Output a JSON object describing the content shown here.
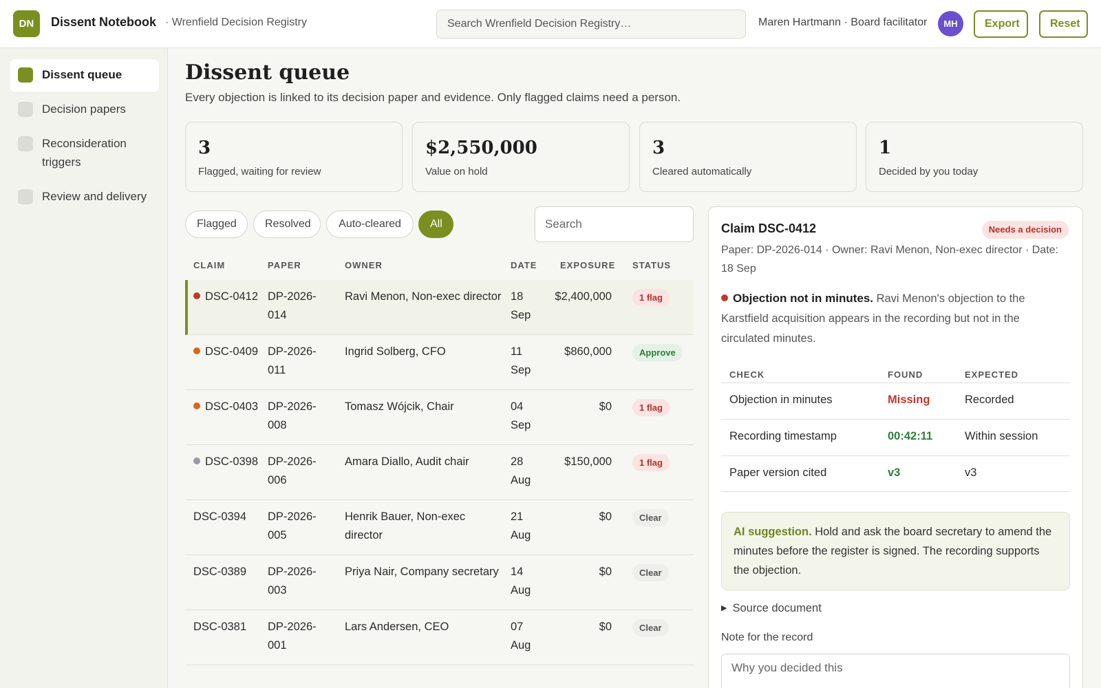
{
  "header": {
    "logo": "DN",
    "app_name": "Dissent Notebook",
    "subtitle": "· Wrenfield Decision Registry",
    "search_placeholder": "Search Wrenfield Decision Registry…",
    "user": "Maren Hartmann · Board facilitator",
    "avatar": "MH",
    "export_label": "Export",
    "reset_label": "Reset",
    "accent": "#7a8f1f"
  },
  "sidebar": {
    "items": [
      {
        "label": "Dissent queue",
        "active": true
      },
      {
        "label": "Decision papers",
        "active": false
      },
      {
        "label": "Reconsideration triggers",
        "active": false
      },
      {
        "label": "Review and delivery",
        "active": false
      }
    ]
  },
  "main": {
    "title": "Dissent queue",
    "description": "Every objection is linked to its decision paper and evidence. Only flagged claims need a person.",
    "stats": [
      {
        "value": "3",
        "label": "Flagged, waiting for review"
      },
      {
        "value": "$2,550,000",
        "label": "Value on hold"
      },
      {
        "value": "3",
        "label": "Cleared automatically"
      },
      {
        "value": "1",
        "label": "Decided by you today"
      }
    ],
    "filters": [
      {
        "label": "Flagged",
        "active": false
      },
      {
        "label": "Resolved",
        "active": false
      },
      {
        "label": "Auto-cleared",
        "active": false
      },
      {
        "label": "All",
        "active": true
      }
    ],
    "table_search_placeholder": "Search",
    "columns": [
      "CLAIM",
      "PAPER",
      "OWNER",
      "DATE",
      "EXPOSURE",
      "STATUS"
    ],
    "rows": [
      {
        "claim": "DSC-0412",
        "paper": "DP-2026-014",
        "owner": "Ravi Menon, Non-exec director",
        "date": "18 Sep",
        "exposure": "$2,400,000",
        "status": "1 flag",
        "status_type": "flag",
        "dot": "#c0392b",
        "selected": true
      },
      {
        "claim": "DSC-0409",
        "paper": "DP-2026-011",
        "owner": "Ingrid Solberg, CFO",
        "date": "11 Sep",
        "exposure": "$860,000",
        "status": "Approve",
        "status_type": "approve",
        "dot": "#d2691e",
        "selected": false
      },
      {
        "claim": "DSC-0403",
        "paper": "DP-2026-008",
        "owner": "Tomasz Wójcik, Chair",
        "date": "04 Sep",
        "exposure": "$0",
        "status": "1 flag",
        "status_type": "flag",
        "dot": "#d2691e",
        "selected": false
      },
      {
        "claim": "DSC-0398",
        "paper": "DP-2026-006",
        "owner": "Amara Diallo, Audit chair",
        "date": "28 Aug",
        "exposure": "$150,000",
        "status": "1 flag",
        "status_type": "flag",
        "dot": "#9a9aa8",
        "selected": false
      },
      {
        "claim": "DSC-0394",
        "paper": "DP-2026-005",
        "owner": "Henrik Bauer, Non-exec director",
        "date": "21 Aug",
        "exposure": "$0",
        "status": "Clear",
        "status_type": "clear",
        "dot": null,
        "selected": false
      },
      {
        "claim": "DSC-0389",
        "paper": "DP-2026-003",
        "owner": "Priya Nair, Company secretary",
        "date": "14 Aug",
        "exposure": "$0",
        "status": "Clear",
        "status_type": "clear",
        "dot": null,
        "selected": false
      },
      {
        "claim": "DSC-0381",
        "paper": "DP-2026-001",
        "owner": "Lars Andersen, CEO",
        "date": "07 Aug",
        "exposure": "$0",
        "status": "Clear",
        "status_type": "clear",
        "dot": null,
        "selected": false
      }
    ]
  },
  "detail": {
    "title": "Claim DSC-0412",
    "badge": "Needs a decision",
    "meta": "Paper: DP-2026-014 · Owner: Ravi Menon, Non-exec director · Date: 18 Sep",
    "objection_head": "Objection not in minutes.",
    "objection_body": " Ravi Menon's objection to the Karstfield acquisition appears in the recording but not in the circulated minutes.",
    "check_columns": [
      "CHECK",
      "FOUND",
      "EXPECTED"
    ],
    "checks": [
      {
        "check": "Objection in minutes",
        "found": "Missing",
        "expected": "Recorded",
        "found_color": "#c0392b"
      },
      {
        "check": "Recording timestamp",
        "found": "00:42:11",
        "expected": "Within session",
        "found_color": "#2f7d3a"
      },
      {
        "check": "Paper version cited",
        "found": "v3",
        "expected": "v3",
        "found_color": "#2f7d3a"
      }
    ],
    "ai_head": "AI suggestion.",
    "ai_body": " Hold and ask the board secretary to amend the minutes before the register is signed. The recording supports the objection.",
    "source_doc": "Source document",
    "note_label": "Note for the record",
    "note_placeholder": "Why you decided this"
  }
}
